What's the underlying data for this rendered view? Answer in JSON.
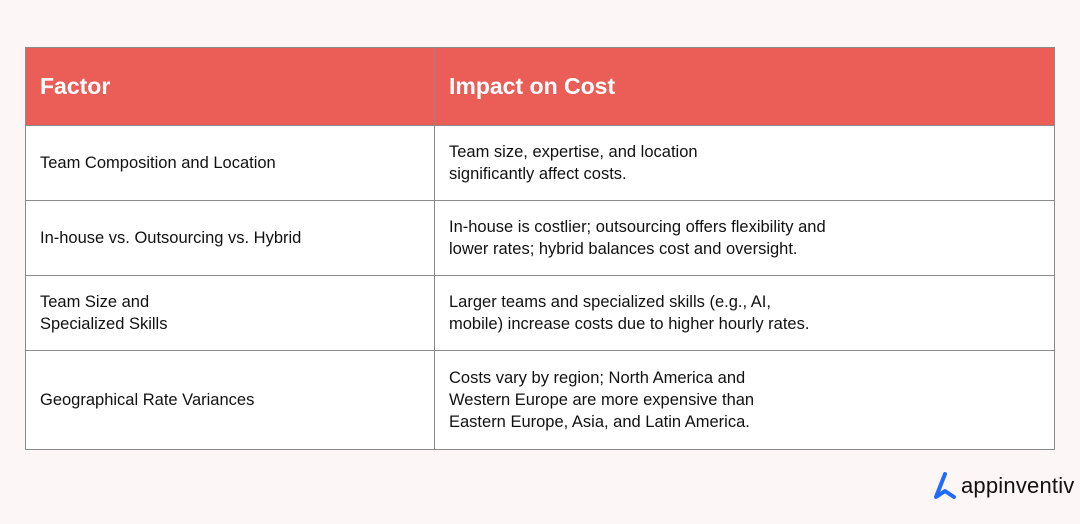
{
  "colors": {
    "header_bg": "#eb5e58",
    "brand_blue": "#1f6bff",
    "page_bg": "#fdf6f6"
  },
  "table": {
    "headers": [
      "Factor",
      "Impact on Cost"
    ],
    "rows": [
      {
        "factor": "Team Composition and Location",
        "impact": "Team size, expertise, and location\nsignificantly affect costs."
      },
      {
        "factor": "In-house vs. Outsourcing vs. Hybrid",
        "impact": "In-house is costlier; outsourcing offers flexibility and\nlower rates; hybrid balances cost and oversight."
      },
      {
        "factor": "Team Size and\nSpecialized Skills",
        "impact": "Larger teams and specialized skills (e.g., AI,\nmobile) increase costs due to higher hourly rates."
      },
      {
        "factor": "Geographical Rate Variances",
        "impact": "Costs vary by region; North America and\nWestern Europe are more expensive than\nEastern Europe, Asia, and Latin America."
      }
    ]
  },
  "logo": {
    "text": "appinventiv",
    "icon": "appinventiv-a-logo-icon"
  }
}
